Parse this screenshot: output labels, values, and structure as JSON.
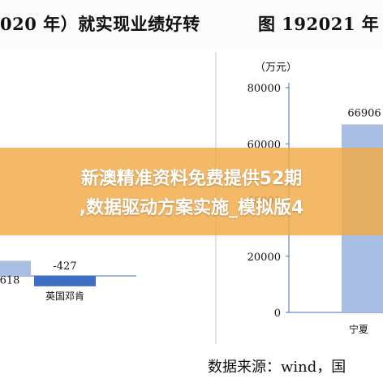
{
  "header": {
    "left_title": "020 年）就实现业绩好转",
    "right_title": "图 192021 年"
  },
  "banner": {
    "line1": "新澳精准资料免费提供52期",
    "line2": ",数据驱动方案实施_模拟版4"
  },
  "footer": {
    "source": "数据来源：wind，国"
  },
  "colors": {
    "bar_positive": "#a9bee3",
    "bar_negative": "#3f6fc2",
    "axis": "#3f6fc2",
    "banner": "#f0aa46"
  },
  "chart_data": [
    {
      "type": "bar",
      "categories": [
        "",
        "英国邓肯"
      ],
      "values": [
        618,
        -427
      ],
      "data_labels": [
        "618",
        "-427"
      ]
    },
    {
      "type": "bar",
      "unit_label": "（万元）",
      "categories": [
        "宁夏"
      ],
      "values": [
        66906
      ],
      "data_labels": [
        "66906"
      ],
      "ylim": [
        0,
        80000
      ],
      "yticks": [
        0,
        20000,
        40000,
        60000,
        80000
      ],
      "ytick_labels": [
        "0",
        "20000",
        "40000",
        "60000",
        "80000"
      ]
    }
  ]
}
